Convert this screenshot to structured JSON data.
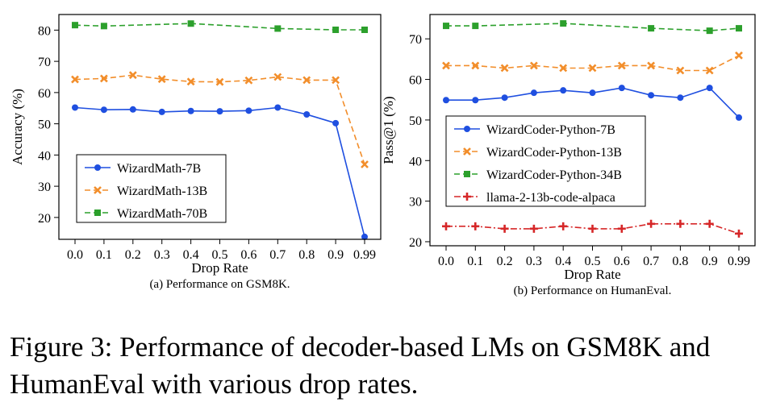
{
  "figure": {
    "caption": "Figure 3: Performance of decoder-based LMs on GSM8K and HumanEval with various drop rates."
  },
  "chart_data": [
    {
      "type": "line",
      "subcaption": "(a) Performance on GSM8K.",
      "xlabel": "Drop Rate",
      "ylabel": "Accuracy (%)",
      "categories": [
        "0.0",
        "0.1",
        "0.2",
        "0.3",
        "0.4",
        "0.5",
        "0.6",
        "0.7",
        "0.8",
        "0.9",
        "0.99"
      ],
      "yticks": [
        20,
        30,
        40,
        50,
        60,
        70,
        80
      ],
      "ylim": [
        13,
        85
      ],
      "legend_position": "lower-left",
      "series": [
        {
          "name": "WizardMath-7B",
          "color": "#1f4fe0",
          "marker": "circle",
          "dash": "",
          "values": [
            55.2,
            54.5,
            54.6,
            53.8,
            54.1,
            54.0,
            54.2,
            55.2,
            53.0,
            50.2,
            13.8
          ]
        },
        {
          "name": "WizardMath-13B",
          "color": "#f28e2b",
          "marker": "x",
          "dash": "7,4",
          "values": [
            64.2,
            64.5,
            65.6,
            64.3,
            63.5,
            63.4,
            63.9,
            65.0,
            64.0,
            64.0,
            37.0
          ]
        },
        {
          "name": "WizardMath-70B",
          "color": "#2ca02c",
          "marker": "square",
          "dash": "7,4",
          "values": [
            81.6,
            81.3,
            null,
            null,
            82.1,
            null,
            null,
            80.5,
            null,
            80.1,
            80.1
          ]
        }
      ]
    },
    {
      "type": "line",
      "subcaption": "(b) Performance on HumanEval.",
      "xlabel": "Drop Rate",
      "ylabel": "Pass@1 (%)",
      "categories": [
        "0.0",
        "0.1",
        "0.2",
        "0.3",
        "0.4",
        "0.5",
        "0.6",
        "0.7",
        "0.8",
        "0.9",
        "0.99"
      ],
      "yticks": [
        20,
        30,
        40,
        50,
        60,
        70
      ],
      "ylim": [
        19,
        76
      ],
      "legend_position": "center-left",
      "series": [
        {
          "name": "WizardCoder-Python-7B",
          "color": "#1f4fe0",
          "marker": "circle",
          "dash": "",
          "values": [
            54.9,
            54.9,
            55.5,
            56.7,
            57.3,
            56.7,
            57.9,
            56.1,
            55.5,
            57.9,
            50.6
          ]
        },
        {
          "name": "WizardCoder-Python-13B",
          "color": "#f28e2b",
          "marker": "x",
          "dash": "7,4",
          "values": [
            63.4,
            63.4,
            62.8,
            63.4,
            62.8,
            62.8,
            63.4,
            63.4,
            62.2,
            62.2,
            65.9
          ]
        },
        {
          "name": "WizardCoder-Python-34B",
          "color": "#2ca02c",
          "marker": "square",
          "dash": "7,4",
          "values": [
            73.2,
            73.2,
            null,
            null,
            73.8,
            null,
            null,
            72.6,
            null,
            72.0,
            72.6
          ]
        },
        {
          "name": "llama-2-13b-code-alpaca",
          "color": "#d62728",
          "marker": "plus",
          "dash": "8,3,2,3",
          "values": [
            23.8,
            23.8,
            23.2,
            23.2,
            23.8,
            23.2,
            23.2,
            24.4,
            24.4,
            24.4,
            22.0
          ]
        }
      ]
    }
  ]
}
